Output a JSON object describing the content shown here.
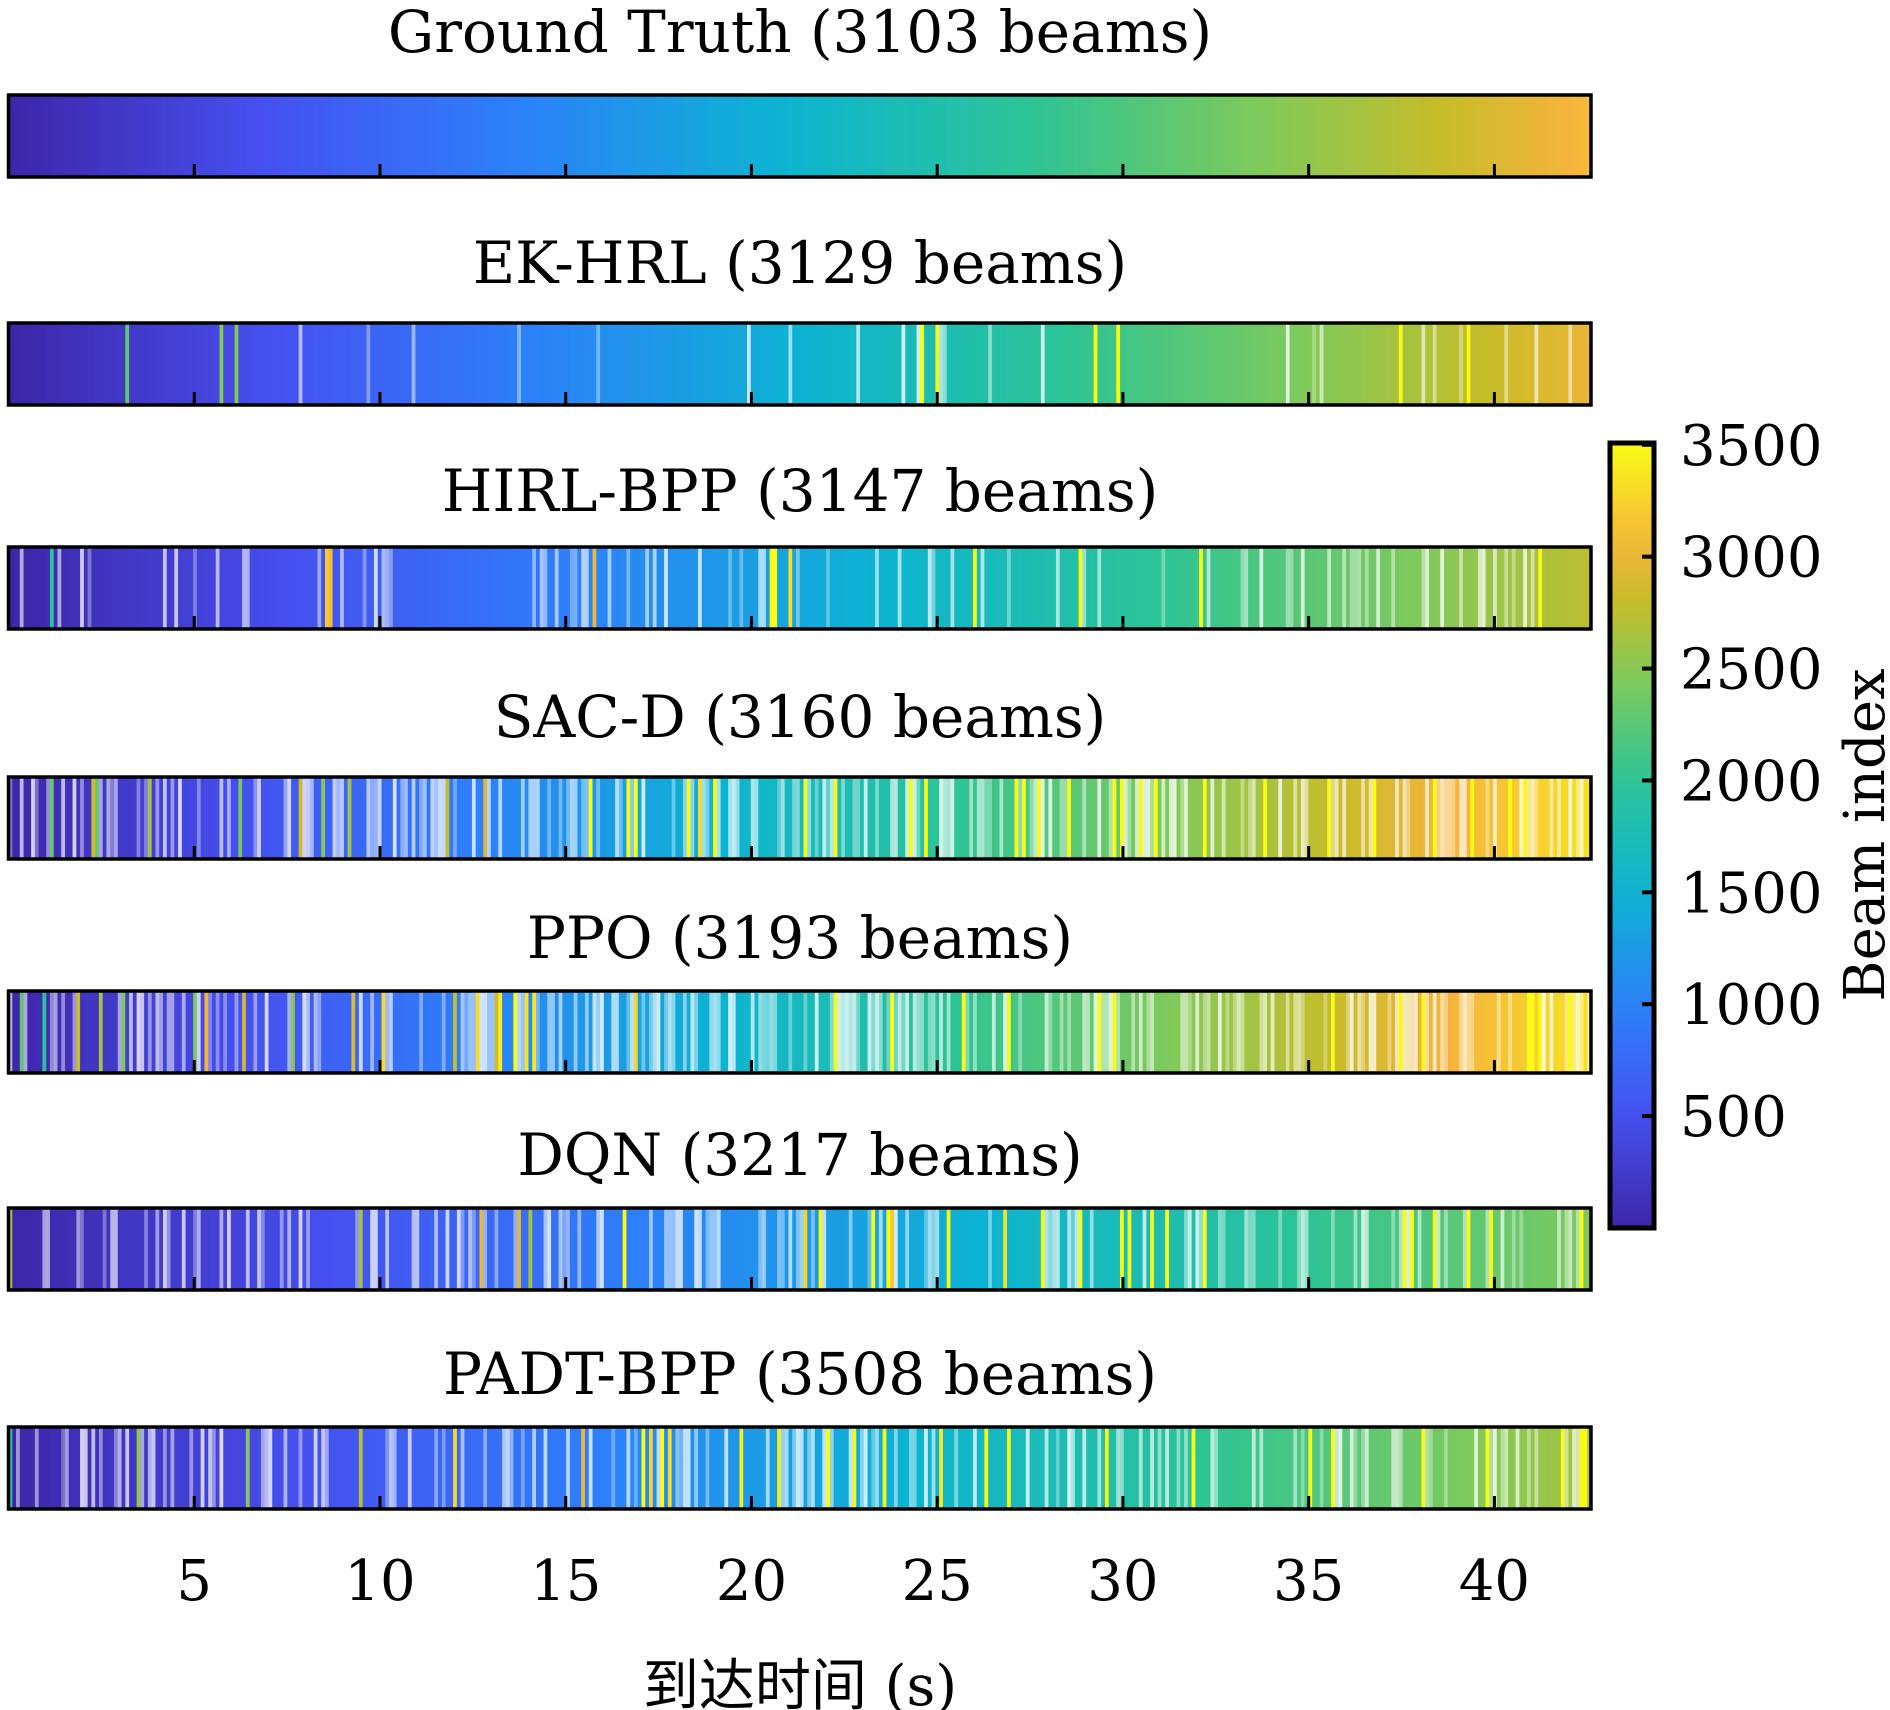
{
  "chart_data": {
    "type": "heatmap",
    "description_kind": "beam-index sequence strips over arrival time",
    "xlabel": "到达时间 (s)",
    "xlim": [
      0,
      42.6
    ],
    "xticks": [
      "5",
      "10",
      "15",
      "20",
      "25",
      "30",
      "35",
      "40"
    ],
    "colorbar": {
      "label": "Beam index",
      "colormap": "parula",
      "range": [
        0,
        3508
      ],
      "ticks": [
        "500",
        "1000",
        "1500",
        "2000",
        "2500",
        "3000",
        "3500"
      ]
    },
    "series": [
      {
        "name": "Ground Truth",
        "title": "Ground Truth (3103 beams)",
        "beams": 3103,
        "end_beam_index": 3103,
        "noise": 0.0
      },
      {
        "name": "EK-HRL",
        "title": "EK-HRL (3129 beams)",
        "beams": 3129,
        "end_beam_index": 3000,
        "noise": 0.05
      },
      {
        "name": "HIRL-BPP",
        "title": "HIRL-BPP (3147 beams)",
        "beams": 3147,
        "end_beam_index": 2750,
        "noise": 0.15
      },
      {
        "name": "SAC-D",
        "title": "SAC-D (3160 beams)",
        "beams": 3160,
        "end_beam_index": 3350,
        "noise": 0.45
      },
      {
        "name": "PPO",
        "title": "PPO (3193 beams)",
        "beams": 3193,
        "end_beam_index": 3350,
        "noise": 0.45
      },
      {
        "name": "DQN",
        "title": "DQN (3217 beams)",
        "beams": 3217,
        "end_beam_index": 2450,
        "noise": 0.25
      },
      {
        "name": "PADT-BPP",
        "title": "PADT-BPP (3508 beams)",
        "beams": 3508,
        "end_beam_index": 2650,
        "noise": 0.3
      }
    ]
  }
}
